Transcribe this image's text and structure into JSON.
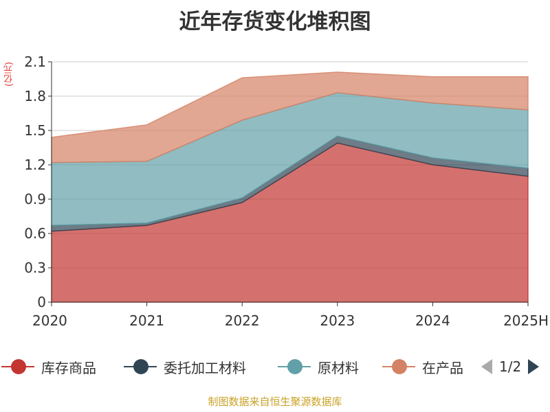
{
  "title": "近年存货变化堆积图",
  "unit": "(亿元)",
  "source": "制图数据来自恒生聚源数据库",
  "legend": {
    "items": [
      {
        "label": "库存商品",
        "color": "#c23531"
      },
      {
        "label": "委托加工材料",
        "color": "#2f4554"
      },
      {
        "label": "原材料",
        "color": "#61a0a8"
      },
      {
        "label": "在产品",
        "color": "#d48265"
      }
    ],
    "page": "1/2"
  },
  "chart_data": {
    "type": "area",
    "stacked": true,
    "title": "近年存货变化堆积图",
    "ylabel": "(亿元)",
    "categories": [
      "2020",
      "2021",
      "2022",
      "2023",
      "2024",
      "2025H"
    ],
    "ylim": [
      0,
      2.1
    ],
    "yticks": [
      "0",
      "0.3",
      "0.6",
      "0.9",
      "1.2",
      "1.5",
      "1.8",
      "2.1"
    ],
    "grid": true,
    "series": [
      {
        "name": "库存商品",
        "color": "#c23531",
        "values": [
          0.62,
          0.67,
          0.87,
          1.39,
          1.2,
          1.1
        ]
      },
      {
        "name": "委托加工材料",
        "color": "#2f4554",
        "values": [
          0.05,
          0.02,
          0.04,
          0.06,
          0.06,
          0.07
        ]
      },
      {
        "name": "原材料",
        "color": "#61a0a8",
        "values": [
          0.55,
          0.54,
          0.68,
          0.38,
          0.48,
          0.51
        ]
      },
      {
        "name": "在产品",
        "color": "#d48265",
        "values": [
          0.22,
          0.32,
          0.37,
          0.18,
          0.23,
          0.29
        ]
      }
    ]
  }
}
